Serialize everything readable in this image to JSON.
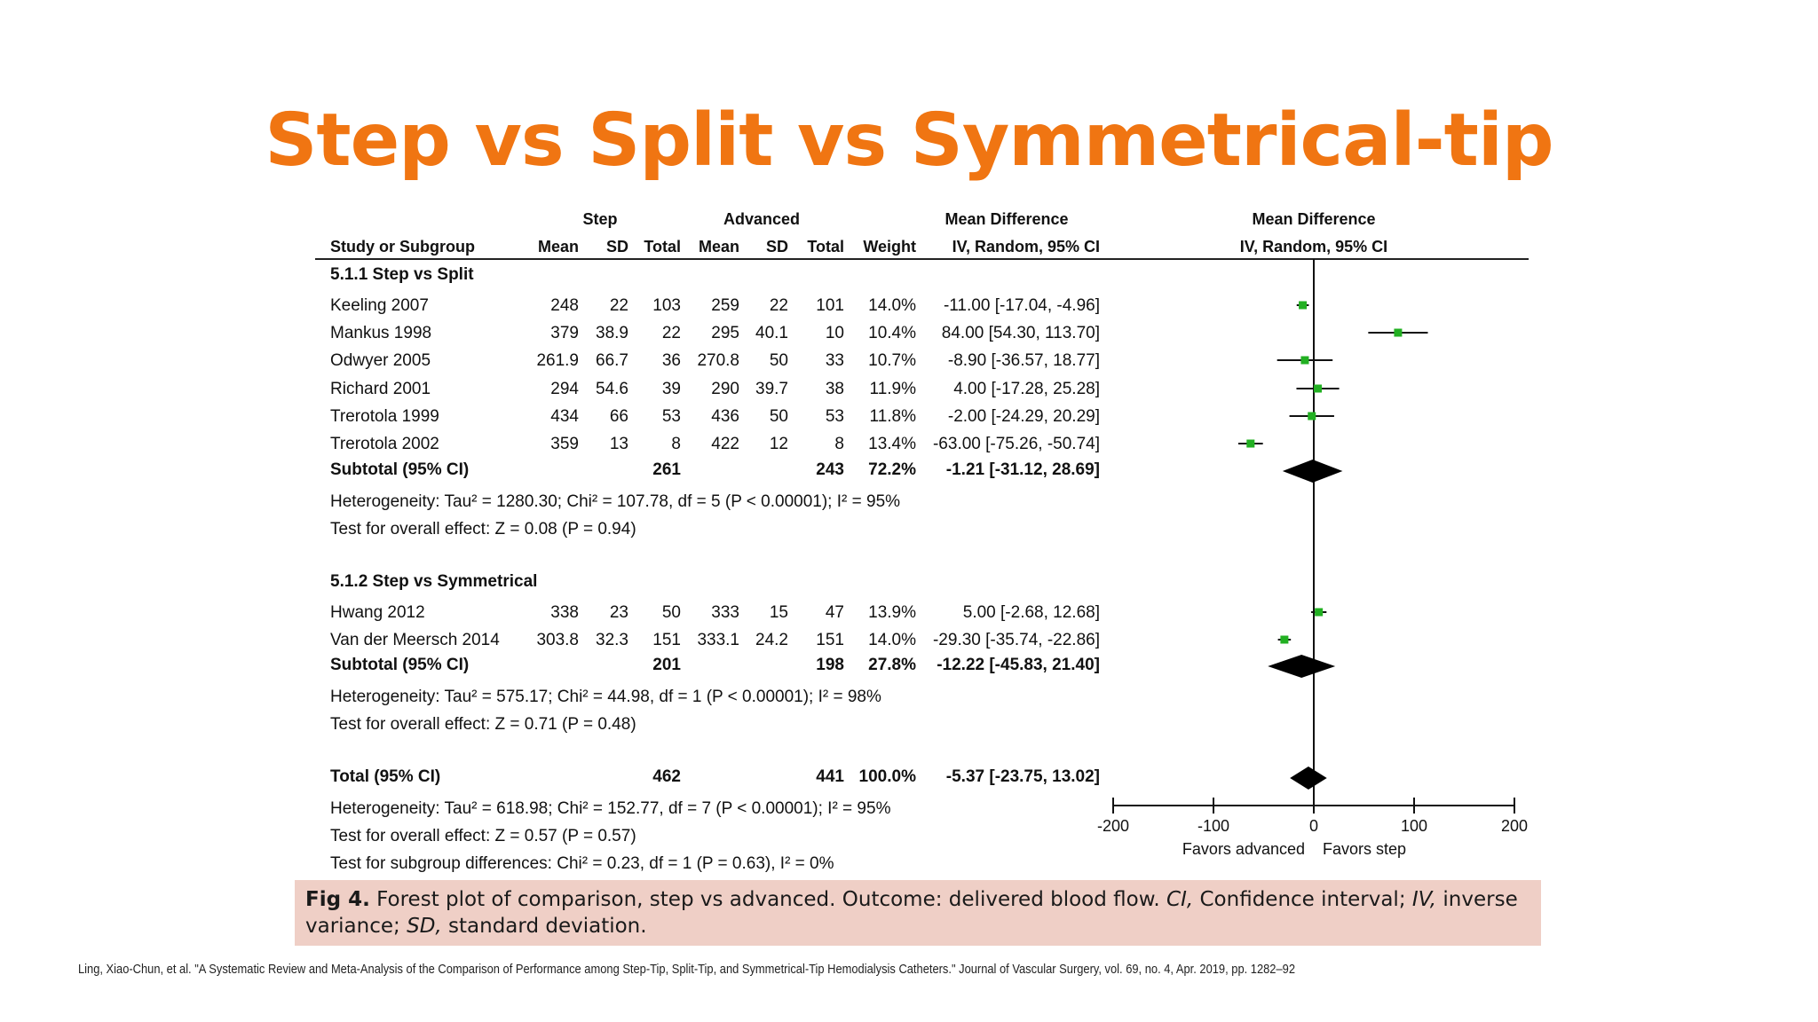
{
  "title": "Step vs Split vs Symmetrical-tip",
  "colors": {
    "title": "#F07512",
    "point": "#22B022",
    "diamond": "#000000",
    "caption_bg": "#EFCFC6",
    "text": "#111111"
  },
  "headers": {
    "group1": "Step",
    "group2": "Advanced",
    "effect_col": "Mean Difference",
    "effect_method": "IV, Random, 95% CI",
    "plot_col": "Mean Difference",
    "plot_method": "IV, Random, 95% CI",
    "study": "Study or Subgroup",
    "mean": "Mean",
    "sd": "SD",
    "total": "Total",
    "weight": "Weight"
  },
  "caption": {
    "fig_label": "Fig 4.",
    "segments": [
      {
        "text": " Forest plot of comparison, step vs advanced. Outcome: delivered blood flow. ",
        "style": "normal"
      },
      {
        "text": "CI,",
        "style": "italic"
      },
      {
        "text": " Confidence interval; ",
        "style": "normal"
      },
      {
        "text": "IV,",
        "style": "italic"
      },
      {
        "text": " inverse variance; ",
        "style": "normal"
      },
      {
        "text": "SD,",
        "style": "italic"
      },
      {
        "text": " standard deviation.",
        "style": "normal"
      }
    ]
  },
  "citation": "Ling, Xiao-Chun, et al. \"A Systematic Review and Meta-Analysis of the Comparison of Performance among Step-Tip, Split-Tip, and Symmetrical-Tip Hemodialysis Catheters.\" Journal of Vascular Surgery, vol. 69, no. 4, Apr. 2019, pp. 1282–92",
  "chart_data": {
    "type": "forest",
    "xlim": [
      -200,
      200
    ],
    "x_ticks": [
      -200,
      -100,
      0,
      100,
      200
    ],
    "x_tick_labels": [
      "-200",
      "-100",
      "0",
      "100",
      "200"
    ],
    "favors_left": "Favors advanced",
    "favors_right": "Favors step",
    "subgroups": [
      {
        "title": "5.1.1 Step vs Split",
        "studies": [
          {
            "name": "Keeling 2007",
            "step_mean": "248",
            "step_sd": "22",
            "step_total": "103",
            "adv_mean": "259",
            "adv_sd": "22",
            "adv_total": "101",
            "weight": "14.0%",
            "ci_text": "-11.00 [-17.04, -4.96]",
            "md": -11.0,
            "lo": -17.04,
            "hi": -4.96
          },
          {
            "name": "Mankus 1998",
            "step_mean": "379",
            "step_sd": "38.9",
            "step_total": "22",
            "adv_mean": "295",
            "adv_sd": "40.1",
            "adv_total": "10",
            "weight": "10.4%",
            "ci_text": "84.00 [54.30, 113.70]",
            "md": 84.0,
            "lo": 54.3,
            "hi": 113.7
          },
          {
            "name": "Odwyer 2005",
            "step_mean": "261.9",
            "step_sd": "66.7",
            "step_total": "36",
            "adv_mean": "270.8",
            "adv_sd": "50",
            "adv_total": "33",
            "weight": "10.7%",
            "ci_text": "-8.90 [-36.57, 18.77]",
            "md": -8.9,
            "lo": -36.57,
            "hi": 18.77
          },
          {
            "name": "Richard 2001",
            "step_mean": "294",
            "step_sd": "54.6",
            "step_total": "39",
            "adv_mean": "290",
            "adv_sd": "39.7",
            "adv_total": "38",
            "weight": "11.9%",
            "ci_text": "4.00 [-17.28, 25.28]",
            "md": 4.0,
            "lo": -17.28,
            "hi": 25.28
          },
          {
            "name": "Trerotola 1999",
            "step_mean": "434",
            "step_sd": "66",
            "step_total": "53",
            "adv_mean": "436",
            "adv_sd": "50",
            "adv_total": "53",
            "weight": "11.8%",
            "ci_text": "-2.00 [-24.29, 20.29]",
            "md": -2.0,
            "lo": -24.29,
            "hi": 20.29
          },
          {
            "name": "Trerotola 2002",
            "step_mean": "359",
            "step_sd": "13",
            "step_total": "8",
            "adv_mean": "422",
            "adv_sd": "12",
            "adv_total": "8",
            "weight": "13.4%",
            "ci_text": "-63.00 [-75.26, -50.74]",
            "md": -63.0,
            "lo": -75.26,
            "hi": -50.74
          }
        ],
        "subtotal": {
          "label": "Subtotal (95% CI)",
          "step_total": "261",
          "adv_total": "243",
          "weight": "72.2%",
          "ci_text": "-1.21 [-31.12, 28.69]",
          "md": -1.21,
          "lo": -31.12,
          "hi": 28.69
        },
        "heterogeneity": "Heterogeneity: Tau² = 1280.30; Chi² = 107.78, df = 5 (P < 0.00001); I² = 95%",
        "overall": "Test for overall effect: Z = 0.08 (P = 0.94)"
      },
      {
        "title": "5.1.2 Step vs Symmetrical",
        "studies": [
          {
            "name": "Hwang 2012",
            "step_mean": "338",
            "step_sd": "23",
            "step_total": "50",
            "adv_mean": "333",
            "adv_sd": "15",
            "adv_total": "47",
            "weight": "13.9%",
            "ci_text": "5.00 [-2.68, 12.68]",
            "md": 5.0,
            "lo": -2.68,
            "hi": 12.68
          },
          {
            "name": "Van der Meersch 2014",
            "step_mean": "303.8",
            "step_sd": "32.3",
            "step_total": "151",
            "adv_mean": "333.1",
            "adv_sd": "24.2",
            "adv_total": "151",
            "weight": "14.0%",
            "ci_text": "-29.30 [-35.74, -22.86]",
            "md": -29.3,
            "lo": -35.74,
            "hi": -22.86
          }
        ],
        "subtotal": {
          "label": "Subtotal (95% CI)",
          "step_total": "201",
          "adv_total": "198",
          "weight": "27.8%",
          "ci_text": "-12.22 [-45.83, 21.40]",
          "md": -12.22,
          "lo": -45.83,
          "hi": 21.4
        },
        "heterogeneity": "Heterogeneity: Tau² = 575.17; Chi² = 44.98, df = 1 (P < 0.00001); I² = 98%",
        "overall": "Test for overall effect: Z = 0.71 (P = 0.48)"
      }
    ],
    "total": {
      "label": "Total (95% CI)",
      "step_total": "462",
      "adv_total": "441",
      "weight": "100.0%",
      "ci_text": "-5.37 [-23.75, 13.02]",
      "md": -5.37,
      "lo": -23.75,
      "hi": 13.02
    },
    "total_heterogeneity": "Heterogeneity: Tau² = 618.98; Chi² = 152.77, df = 7 (P < 0.00001); I² = 95%",
    "total_overall": "Test for overall effect: Z = 0.57 (P = 0.57)",
    "subgroup_differences": "Test for subgroup differences: Chi² = 0.23, df = 1 (P = 0.63), I² = 0%"
  }
}
